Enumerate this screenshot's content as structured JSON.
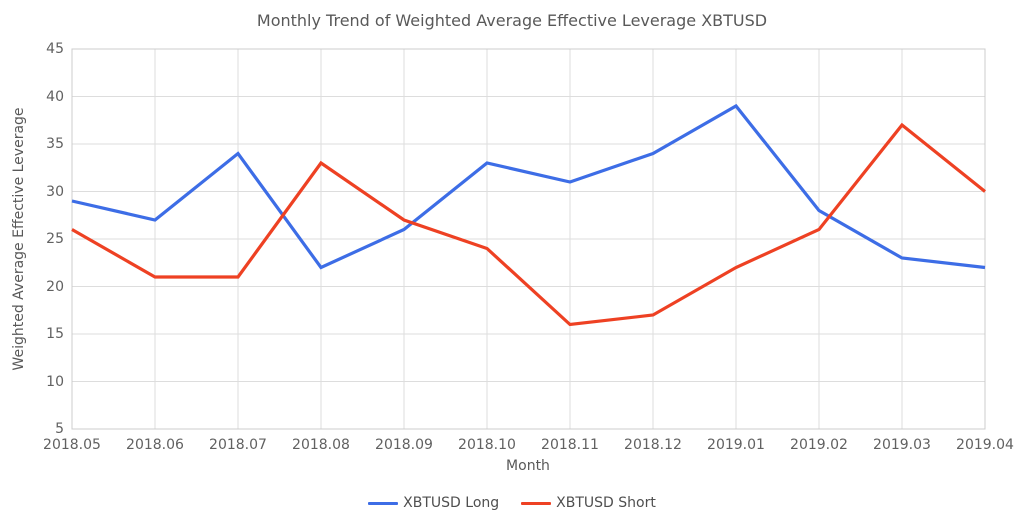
{
  "chart_data": {
    "type": "line",
    "title": "Monthly Trend of Weighted Average Effective Leverage XBTUSD",
    "xlabel": "Month",
    "ylabel": "Weighted Average Effective Leverage",
    "categories": [
      "2018.05",
      "2018.06",
      "2018.07",
      "2018.08",
      "2018.09",
      "2018.10",
      "2018.11",
      "2018.12",
      "2019.01",
      "2019.02",
      "2019.03",
      "2019.04"
    ],
    "series": [
      {
        "name": "XBTUSD Long",
        "color": "#3D6DE6",
        "values": [
          29,
          27,
          34,
          22,
          26,
          33,
          31,
          34,
          39,
          28,
          23,
          22
        ]
      },
      {
        "name": "XBTUSD Short",
        "color": "#EE4123",
        "values": [
          26,
          21,
          21,
          33,
          27,
          24,
          16,
          17,
          22,
          26,
          37,
          30
        ]
      }
    ],
    "ylim": [
      5,
      45
    ],
    "yticks": [
      5,
      10,
      15,
      20,
      25,
      30,
      35,
      40,
      45
    ],
    "grid": true,
    "legend_position": "bottom"
  },
  "colors": {
    "gridline": "#DDDDDD",
    "plot_border": "#CCCCCC",
    "title_text": "#595959",
    "tick_text": "#616161"
  }
}
